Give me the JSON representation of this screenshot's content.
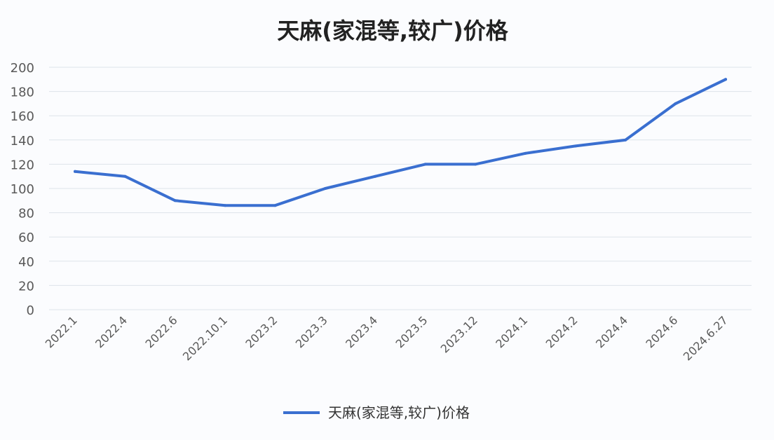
{
  "chart_data": {
    "type": "line",
    "title": "天麻(家混等,较广)价格",
    "xlabel": "",
    "ylabel": "",
    "categories": [
      "2022.1",
      "2022.4",
      "2022.6",
      "2022.10.1",
      "2023.2",
      "2023.3",
      "2023.4",
      "2023.5",
      "2023.12",
      "2024.1",
      "2024.2",
      "2024.4",
      "2024.6",
      "2024.6.27"
    ],
    "series": [
      {
        "name": "天麻(家混等,较广)价格",
        "values": [
          114,
          110,
          90,
          86,
          86,
          100,
          110,
          120,
          120,
          129,
          135,
          140,
          170,
          190
        ]
      }
    ],
    "ylim": [
      0,
      200
    ],
    "yticks": [
      0,
      20,
      40,
      60,
      80,
      100,
      120,
      140,
      160,
      180,
      200
    ],
    "grid": true,
    "legend_position": "bottom",
    "colors": {
      "line": "#3a6fd0",
      "grid": "#dde3ea",
      "background": "#fbfcfe"
    }
  }
}
